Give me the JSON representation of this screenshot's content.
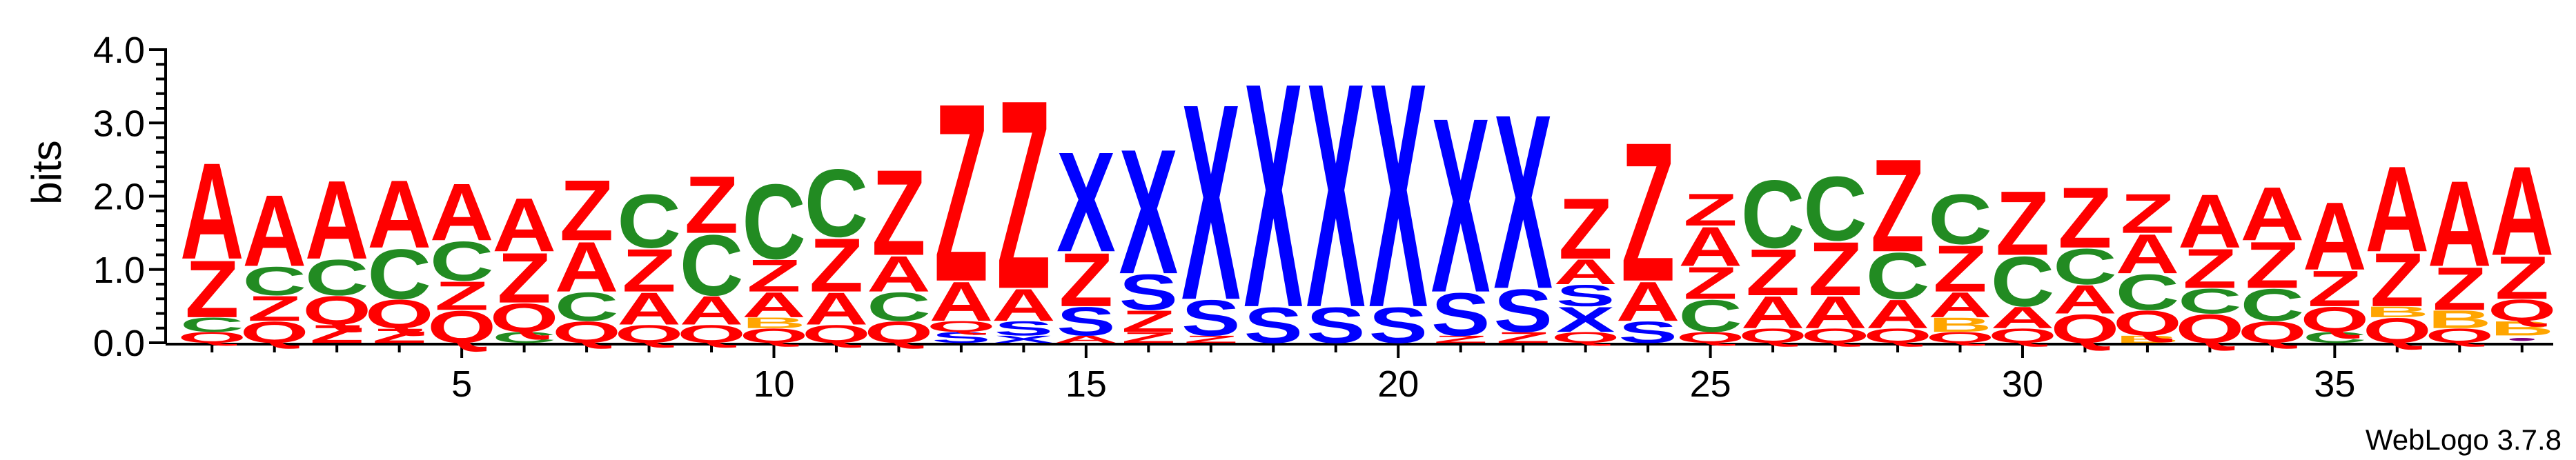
{
  "chart_data": {
    "type": "sequence_logo",
    "ylabel": "bits",
    "ylim": [
      0,
      4.0
    ],
    "yticks": [
      "0.0",
      "1.0",
      "2.0",
      "3.0",
      "4.0"
    ],
    "xticks": [
      "5",
      "10",
      "15",
      "20",
      "25",
      "30",
      "35"
    ],
    "xtick_positions": [
      5,
      10,
      15,
      20,
      25,
      30,
      35
    ],
    "xrange": [
      1,
      38
    ],
    "footer": "WebLogo 3.7.8",
    "colors": {
      "A": "#ff0000",
      "Z": "#ff0000",
      "C": "#228b22",
      "Q": "#ff0000",
      "S": "#0000ff",
      "X": "#0000ff",
      "B": "#ffa500",
      "dot": "#800080"
    },
    "columns": [
      {
        "pos": 1,
        "stack": [
          [
            "Q",
            0.15
          ],
          [
            "C",
            0.2
          ],
          [
            "Z",
            0.8
          ],
          [
            "A",
            1.35
          ]
        ]
      },
      {
        "pos": 2,
        "stack": [
          [
            "Q",
            0.3
          ],
          [
            "Z",
            0.35
          ],
          [
            "C",
            0.4
          ],
          [
            "A",
            1.0
          ]
        ]
      },
      {
        "pos": 3,
        "stack": [
          [
            "Z",
            0.25
          ],
          [
            "Q",
            0.4
          ],
          [
            "C",
            0.5
          ],
          [
            "A",
            1.1
          ]
        ]
      },
      {
        "pos": 4,
        "stack": [
          [
            "Z",
            0.2
          ],
          [
            "Q",
            0.4
          ],
          [
            "C",
            0.7
          ],
          [
            "A",
            0.95
          ]
        ]
      },
      {
        "pos": 5,
        "stack": [
          [
            "Q",
            0.45
          ],
          [
            "Z",
            0.4
          ],
          [
            "C",
            0.55
          ],
          [
            "A",
            0.8
          ]
        ]
      },
      {
        "pos": 6,
        "stack": [
          [
            "C",
            0.15
          ],
          [
            "Q",
            0.4
          ],
          [
            "Z",
            0.7
          ],
          [
            "A",
            0.75
          ]
        ]
      },
      {
        "pos": 7,
        "stack": [
          [
            "Q",
            0.3
          ],
          [
            "C",
            0.4
          ],
          [
            "A",
            0.7
          ],
          [
            "Z",
            0.85
          ]
        ]
      },
      {
        "pos": 8,
        "stack": [
          [
            "Q",
            0.25
          ],
          [
            "A",
            0.45
          ],
          [
            "Z",
            0.6
          ],
          [
            "C",
            0.75
          ]
        ]
      },
      {
        "pos": 9,
        "stack": [
          [
            "Q",
            0.25
          ],
          [
            "A",
            0.4
          ],
          [
            "C",
            0.85
          ],
          [
            "Z",
            0.8
          ]
        ]
      },
      {
        "pos": 10,
        "stack": [
          [
            "Q",
            0.2
          ],
          [
            "B",
            0.15
          ],
          [
            "A",
            0.35
          ],
          [
            "Z",
            0.45
          ],
          [
            "C",
            1.05
          ]
        ]
      },
      {
        "pos": 11,
        "stack": [
          [
            "Q",
            0.25
          ],
          [
            "A",
            0.45
          ],
          [
            "Z",
            0.75
          ],
          [
            "C",
            0.95
          ]
        ]
      },
      {
        "pos": 12,
        "stack": [
          [
            "Q",
            0.3
          ],
          [
            "C",
            0.4
          ],
          [
            "A",
            0.5
          ],
          [
            "Z",
            1.2
          ]
        ]
      },
      {
        "pos": 13,
        "stack": [
          [
            "S",
            0.15
          ],
          [
            "Q",
            0.15
          ],
          [
            "A",
            0.55
          ],
          [
            "Z",
            2.5
          ]
        ]
      },
      {
        "pos": 14,
        "stack": [
          [
            "X",
            0.1
          ],
          [
            "S",
            0.2
          ],
          [
            "A",
            0.45
          ],
          [
            "Z",
            2.65
          ]
        ]
      },
      {
        "pos": 15,
        "stack": [
          [
            "A",
            0.1
          ],
          [
            "S",
            0.4
          ],
          [
            "Z",
            0.75
          ],
          [
            "X",
            1.4
          ]
        ]
      },
      {
        "pos": 16,
        "stack": [
          [
            "Z",
            0.15
          ],
          [
            "Z",
            0.3
          ],
          [
            "S",
            0.5
          ],
          [
            "X",
            1.75
          ]
        ]
      },
      {
        "pos": 17,
        "stack": [
          [
            "Z",
            0.1
          ],
          [
            "S",
            0.5
          ],
          [
            "X",
            2.75
          ]
        ]
      },
      {
        "pos": 18,
        "stack": [
          [
            "S",
            0.5
          ],
          [
            "X",
            3.15
          ]
        ]
      },
      {
        "pos": 19,
        "stack": [
          [
            "S",
            0.5
          ],
          [
            "X",
            3.15
          ]
        ]
      },
      {
        "pos": 20,
        "stack": [
          [
            "S",
            0.5
          ],
          [
            "X",
            3.15
          ]
        ]
      },
      {
        "pos": 21,
        "stack": [
          [
            "Z",
            0.1
          ],
          [
            "S",
            0.6
          ],
          [
            "X",
            2.45
          ]
        ]
      },
      {
        "pos": 22,
        "stack": [
          [
            "Z",
            0.15
          ],
          [
            "S",
            0.6
          ],
          [
            "X",
            2.45
          ]
        ]
      },
      {
        "pos": 23,
        "stack": [
          [
            "Q",
            0.15
          ],
          [
            "X",
            0.35
          ],
          [
            "S",
            0.3
          ],
          [
            "A",
            0.35
          ],
          [
            "Z",
            0.85
          ]
        ]
      },
      {
        "pos": 24,
        "stack": [
          [
            "S",
            0.3
          ],
          [
            "A",
            0.55
          ],
          [
            "Z",
            1.95
          ]
        ]
      },
      {
        "pos": 25,
        "stack": [
          [
            "Q",
            0.15
          ],
          [
            "C",
            0.45
          ],
          [
            "Z",
            0.45
          ],
          [
            "A",
            0.55
          ],
          [
            "Z",
            0.45
          ]
        ]
      },
      {
        "pos": 26,
        "stack": [
          [
            "Q",
            0.2
          ],
          [
            "A",
            0.45
          ],
          [
            "Z",
            0.65
          ],
          [
            "C",
            0.95
          ]
        ]
      },
      {
        "pos": 27,
        "stack": [
          [
            "Q",
            0.2
          ],
          [
            "A",
            0.45
          ],
          [
            "Z",
            0.75
          ],
          [
            "C",
            0.9
          ]
        ]
      },
      {
        "pos": 28,
        "stack": [
          [
            "Q",
            0.2
          ],
          [
            "A",
            0.4
          ],
          [
            "C",
            0.65
          ],
          [
            "Z",
            1.3
          ]
        ]
      },
      {
        "pos": 29,
        "stack": [
          [
            "Q",
            0.15
          ],
          [
            "B",
            0.2
          ],
          [
            "A",
            0.35
          ],
          [
            "Z",
            0.65
          ],
          [
            "C",
            0.7
          ]
        ]
      },
      {
        "pos": 30,
        "stack": [
          [
            "Q",
            0.2
          ],
          [
            "A",
            0.3
          ],
          [
            "C",
            0.7
          ],
          [
            "Z",
            0.9
          ]
        ]
      },
      {
        "pos": 31,
        "stack": [
          [
            "Q",
            0.4
          ],
          [
            "A",
            0.4
          ],
          [
            "C",
            0.5
          ],
          [
            "Z",
            0.85
          ]
        ]
      },
      {
        "pos": 32,
        "stack": [
          [
            "B",
            0.1
          ],
          [
            "Q",
            0.35
          ],
          [
            "C",
            0.5
          ],
          [
            "A",
            0.55
          ],
          [
            "Z",
            0.55
          ]
        ]
      },
      {
        "pos": 33,
        "stack": [
          [
            "Q",
            0.4
          ],
          [
            "C",
            0.35
          ],
          [
            "Z",
            0.55
          ],
          [
            "A",
            0.75
          ]
        ]
      },
      {
        "pos": 34,
        "stack": [
          [
            "Q",
            0.3
          ],
          [
            "C",
            0.45
          ],
          [
            "Z",
            0.65
          ],
          [
            "A",
            0.75
          ]
        ]
      },
      {
        "pos": 35,
        "stack": [
          [
            "C",
            0.15
          ],
          [
            "Q",
            0.35
          ],
          [
            "Z",
            0.5
          ],
          [
            "A",
            0.95
          ]
        ]
      },
      {
        "pos": 36,
        "stack": [
          [
            "Q",
            0.35
          ],
          [
            "B",
            0.15
          ],
          [
            "Z",
            0.75
          ],
          [
            "A",
            1.2
          ]
        ]
      },
      {
        "pos": 37,
        "stack": [
          [
            "Q",
            0.2
          ],
          [
            "B",
            0.25
          ],
          [
            "Z",
            0.6
          ],
          [
            "A",
            1.2
          ]
        ]
      },
      {
        "pos": 38,
        "stack": [
          [
            "dot",
            0.1
          ],
          [
            "B",
            0.2
          ],
          [
            "Q",
            0.3
          ],
          [
            "Z",
            0.6
          ],
          [
            "A",
            1.25
          ]
        ]
      }
    ]
  }
}
